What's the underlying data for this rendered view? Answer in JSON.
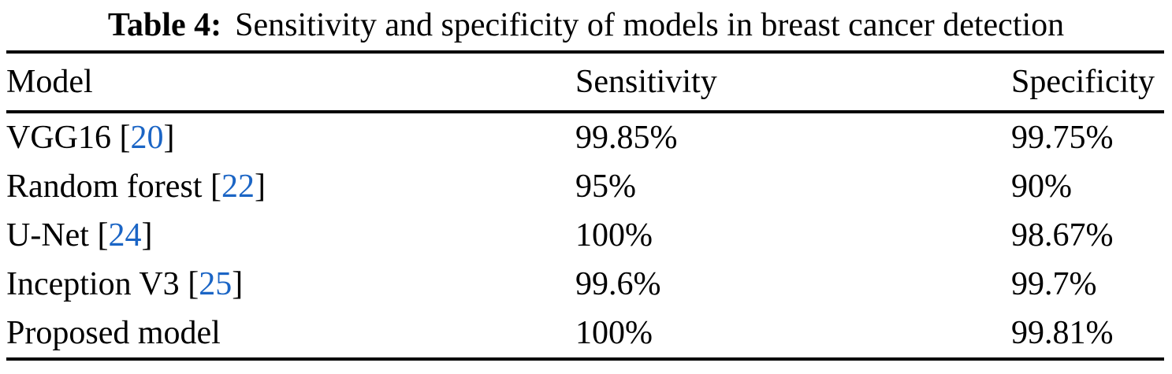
{
  "caption": {
    "label": "Table 4:",
    "text": "Sensitivity and specificity of models in breast cancer detection"
  },
  "table": {
    "headers": {
      "model": "Model",
      "sensitivity": "Sensitivity",
      "specificity": "Specificity"
    },
    "rows": [
      {
        "model": "VGG16",
        "cite_open": " [",
        "cite": "20",
        "cite_close": "]",
        "sensitivity": "99.85%",
        "specificity": "99.75%"
      },
      {
        "model": "Random forest",
        "cite_open": " [",
        "cite": "22",
        "cite_close": "]",
        "sensitivity": "95%",
        "specificity": "90%"
      },
      {
        "model": "U-Net",
        "cite_open": " [",
        "cite": "24",
        "cite_close": "]",
        "sensitivity": "100%",
        "specificity": "98.67%"
      },
      {
        "model": "Inception V3",
        "cite_open": " [",
        "cite": "25",
        "cite_close": "]",
        "sensitivity": "99.6%",
        "specificity": "99.7%"
      },
      {
        "model": "Proposed model",
        "cite_open": "",
        "cite": "",
        "cite_close": "",
        "sensitivity": "100%",
        "specificity": "99.81%"
      }
    ]
  },
  "colors": {
    "citation_link": "#1b65c5",
    "text": "#000000",
    "rule": "#000000",
    "background": "#ffffff"
  }
}
